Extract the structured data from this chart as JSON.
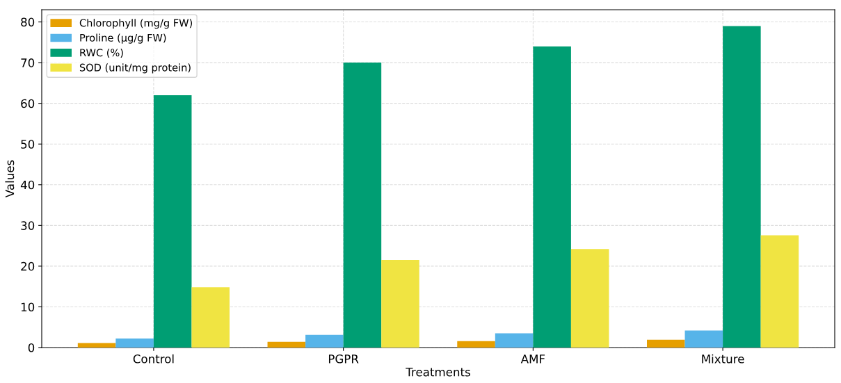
{
  "chart_data": {
    "type": "bar",
    "xlabel": "Treatments",
    "ylabel": "Values",
    "categories": [
      "Control",
      "PGPR",
      "AMF",
      "Mixture"
    ],
    "series": [
      {
        "name": "Chlorophyll (mg/g FW)",
        "color": "#e69f00",
        "values": [
          1.1,
          1.4,
          1.6,
          1.9
        ]
      },
      {
        "name": "Proline (µg/g FW)",
        "color": "#56b4e9",
        "values": [
          2.2,
          3.1,
          3.5,
          4.2
        ]
      },
      {
        "name": "RWC (%)",
        "color": "#009e73",
        "values": [
          62,
          70,
          74,
          79
        ]
      },
      {
        "name": "SOD (unit/mg protein)",
        "color": "#f0e442",
        "values": [
          14.8,
          21.5,
          24.2,
          27.6
        ]
      }
    ],
    "ylim": [
      0,
      83
    ],
    "yticks": [
      0,
      10,
      20,
      30,
      40,
      50,
      60,
      70,
      80
    ],
    "grid": true,
    "legend": "top left"
  }
}
